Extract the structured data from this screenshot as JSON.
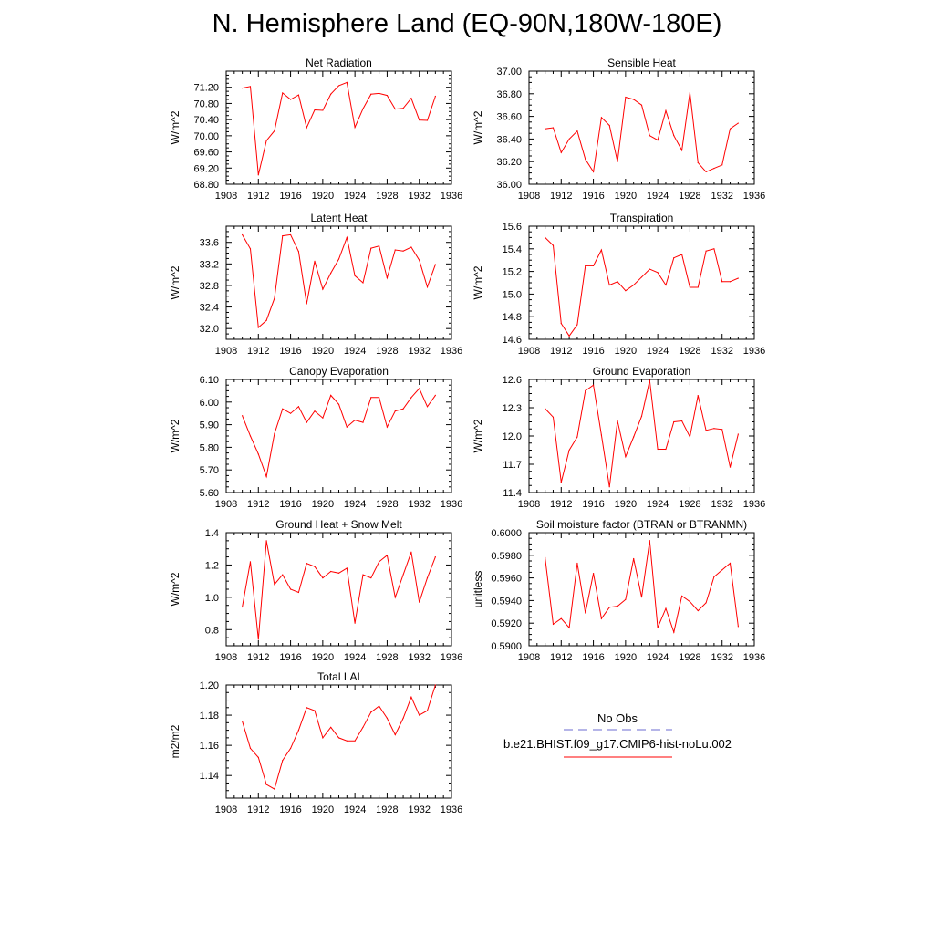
{
  "page": {
    "title": "N. Hemisphere Land (EQ-90N,180W-180E)"
  },
  "legend": {
    "obs_label": "No Obs",
    "model_label": "b.e21.BHIST.f09_g17.CMIP6-hist-noLu.002",
    "obs_color": "#6b6bd0",
    "model_color": "#ff0000"
  },
  "chart_data": [
    {
      "type": "line",
      "title": "Net Radiation",
      "ylabel": "W/m^2",
      "xlim": [
        1908,
        1936
      ],
      "ylim": [
        68.8,
        71.6
      ],
      "xticks": [
        1908,
        1912,
        1916,
        1920,
        1924,
        1928,
        1932,
        1936
      ],
      "yticks": [
        "68.80",
        "69.20",
        "69.60",
        "70.00",
        "70.40",
        "70.80",
        "71.20"
      ],
      "series": [
        {
          "color": "#ff0000",
          "x": [
            1910,
            1911,
            1912,
            1913,
            1914,
            1915,
            1916,
            1917,
            1918,
            1919,
            1920,
            1921,
            1922,
            1923,
            1924,
            1925,
            1926,
            1927,
            1928,
            1929,
            1930,
            1931,
            1932,
            1933,
            1934
          ],
          "values": [
            71.18,
            71.22,
            69.03,
            69.88,
            70.12,
            71.06,
            70.9,
            71.01,
            70.2,
            70.64,
            70.63,
            71.03,
            71.24,
            71.32,
            70.21,
            70.67,
            71.03,
            71.05,
            71.0,
            70.66,
            70.68,
            70.93,
            70.39,
            70.38,
            70.98
          ]
        }
      ]
    },
    {
      "type": "line",
      "title": "Sensible Heat",
      "ylabel": "W/m^2",
      "xlim": [
        1908,
        1936
      ],
      "ylim": [
        36.0,
        37.0
      ],
      "xticks": [
        1908,
        1912,
        1916,
        1920,
        1924,
        1928,
        1932,
        1936
      ],
      "yticks": [
        "36.00",
        "36.20",
        "36.40",
        "36.60",
        "36.80",
        "37.00"
      ],
      "series": [
        {
          "color": "#ff0000",
          "x": [
            1910,
            1911,
            1912,
            1913,
            1914,
            1915,
            1916,
            1917,
            1918,
            1919,
            1920,
            1921,
            1922,
            1923,
            1924,
            1925,
            1926,
            1927,
            1928,
            1929,
            1930,
            1931,
            1932,
            1933,
            1934
          ],
          "values": [
            36.49,
            36.5,
            36.28,
            36.4,
            36.47,
            36.22,
            36.11,
            36.59,
            36.52,
            36.2,
            36.77,
            36.75,
            36.7,
            36.43,
            36.39,
            36.65,
            36.43,
            36.3,
            36.81,
            36.19,
            36.11,
            36.14,
            36.17,
            36.49,
            36.54
          ]
        }
      ]
    },
    {
      "type": "line",
      "title": "Latent Heat",
      "ylabel": "W/m^2",
      "xlim": [
        1908,
        1936
      ],
      "ylim": [
        31.8,
        33.9
      ],
      "xticks": [
        1908,
        1912,
        1916,
        1920,
        1924,
        1928,
        1932,
        1936
      ],
      "yticks": [
        "32.0",
        "32.4",
        "32.8",
        "33.2",
        "33.6"
      ],
      "series": [
        {
          "color": "#ff0000",
          "x": [
            1910,
            1911,
            1912,
            1913,
            1914,
            1915,
            1916,
            1917,
            1918,
            1919,
            1920,
            1921,
            1922,
            1923,
            1924,
            1925,
            1926,
            1927,
            1928,
            1929,
            1930,
            1931,
            1932,
            1933,
            1934
          ],
          "values": [
            33.74,
            33.48,
            32.02,
            32.15,
            32.56,
            33.72,
            33.74,
            33.43,
            32.46,
            33.25,
            32.73,
            33.03,
            33.29,
            33.69,
            32.98,
            32.85,
            33.49,
            33.53,
            32.94,
            33.46,
            33.44,
            33.51,
            33.27,
            32.77,
            33.19
          ]
        }
      ]
    },
    {
      "type": "line",
      "title": "Transpiration",
      "ylabel": "W/m^2",
      "xlim": [
        1908,
        1936
      ],
      "ylim": [
        14.6,
        15.6
      ],
      "xticks": [
        1908,
        1912,
        1916,
        1920,
        1924,
        1928,
        1932,
        1936
      ],
      "yticks": [
        "14.6",
        "14.8",
        "15.0",
        "15.2",
        "15.4",
        "15.6"
      ],
      "series": [
        {
          "color": "#ff0000",
          "x": [
            1910,
            1911,
            1912,
            1913,
            1914,
            1915,
            1916,
            1917,
            1918,
            1919,
            1920,
            1921,
            1922,
            1923,
            1924,
            1925,
            1926,
            1927,
            1928,
            1929,
            1930,
            1931,
            1932,
            1933,
            1934
          ],
          "values": [
            15.5,
            15.43,
            14.74,
            14.63,
            14.73,
            15.25,
            15.25,
            15.39,
            15.08,
            15.11,
            15.03,
            15.08,
            15.15,
            15.22,
            15.19,
            15.08,
            15.32,
            15.35,
            15.06,
            15.06,
            15.38,
            15.4,
            15.11,
            15.11,
            15.14
          ]
        }
      ]
    },
    {
      "type": "line",
      "title": "Canopy Evaporation",
      "ylabel": "W/m^2",
      "xlim": [
        1908,
        1936
      ],
      "ylim": [
        5.6,
        6.1
      ],
      "xticks": [
        1908,
        1912,
        1916,
        1920,
        1924,
        1928,
        1932,
        1936
      ],
      "yticks": [
        "5.60",
        "5.70",
        "5.80",
        "5.90",
        "6.00",
        "6.10"
      ],
      "series": [
        {
          "color": "#ff0000",
          "x": [
            1910,
            1911,
            1912,
            1913,
            1914,
            1915,
            1916,
            1917,
            1918,
            1919,
            1920,
            1921,
            1922,
            1923,
            1924,
            1925,
            1926,
            1927,
            1928,
            1929,
            1930,
            1931,
            1932,
            1933,
            1934
          ],
          "values": [
            5.94,
            5.85,
            5.77,
            5.67,
            5.86,
            5.97,
            5.95,
            5.98,
            5.91,
            5.96,
            5.93,
            6.03,
            5.99,
            5.89,
            5.92,
            5.91,
            6.02,
            6.02,
            5.89,
            5.96,
            5.97,
            6.02,
            6.06,
            5.98,
            6.03
          ]
        }
      ]
    },
    {
      "type": "line",
      "title": "Ground Evaporation",
      "ylabel": "W/m^2",
      "xlim": [
        1908,
        1936
      ],
      "ylim": [
        11.4,
        12.6
      ],
      "xticks": [
        1908,
        1912,
        1916,
        1920,
        1924,
        1928,
        1932,
        1936
      ],
      "yticks": [
        "11.4",
        "11.7",
        "12.0",
        "12.3",
        "12.6"
      ],
      "series": [
        {
          "color": "#ff0000",
          "x": [
            1910,
            1911,
            1912,
            1913,
            1914,
            1915,
            1916,
            1917,
            1918,
            1919,
            1920,
            1921,
            1922,
            1923,
            1924,
            1925,
            1926,
            1927,
            1928,
            1929,
            1930,
            1931,
            1932,
            1933,
            1934
          ],
          "values": [
            12.29,
            12.2,
            11.51,
            11.85,
            11.99,
            12.48,
            12.54,
            12.01,
            11.46,
            12.16,
            11.78,
            11.99,
            12.21,
            12.59,
            11.86,
            11.86,
            12.15,
            12.16,
            11.99,
            12.43,
            12.06,
            12.08,
            12.07,
            11.67,
            12.02
          ]
        }
      ]
    },
    {
      "type": "line",
      "title": "Ground Heat + Snow Melt",
      "ylabel": "W/m^2",
      "xlim": [
        1908,
        1936
      ],
      "ylim": [
        0.7,
        1.4
      ],
      "xticks": [
        1908,
        1912,
        1916,
        1920,
        1924,
        1928,
        1932,
        1936
      ],
      "yticks": [
        "0.8",
        "1.0",
        "1.2",
        "1.4"
      ],
      "series": [
        {
          "color": "#ff0000",
          "x": [
            1910,
            1911,
            1912,
            1913,
            1914,
            1915,
            1916,
            1917,
            1918,
            1919,
            1920,
            1921,
            1922,
            1923,
            1924,
            1925,
            1926,
            1927,
            1928,
            1929,
            1930,
            1931,
            1932,
            1933,
            1934
          ],
          "values": [
            0.94,
            1.22,
            0.74,
            1.35,
            1.08,
            1.14,
            1.05,
            1.03,
            1.21,
            1.19,
            1.12,
            1.16,
            1.15,
            1.18,
            0.84,
            1.14,
            1.12,
            1.22,
            1.26,
            1.0,
            1.14,
            1.28,
            0.97,
            1.12,
            1.25
          ]
        }
      ]
    },
    {
      "type": "line",
      "title": "Soil moisture factor (BTRAN or BTRANMN)",
      "ylabel": "unitless",
      "xlim": [
        1908,
        1936
      ],
      "ylim": [
        0.59,
        0.6
      ],
      "xticks": [
        1908,
        1912,
        1916,
        1920,
        1924,
        1928,
        1932,
        1936
      ],
      "yticks": [
        "0.5900",
        "0.5920",
        "0.5940",
        "0.5960",
        "0.5980",
        "0.6000"
      ],
      "series": [
        {
          "color": "#ff0000",
          "x": [
            1910,
            1911,
            1912,
            1913,
            1914,
            1915,
            1916,
            1917,
            1918,
            1919,
            1920,
            1921,
            1922,
            1923,
            1924,
            1925,
            1926,
            1927,
            1928,
            1929,
            1930,
            1931,
            1932,
            1933,
            1934
          ],
          "values": [
            0.5978,
            0.5919,
            0.5924,
            0.5916,
            0.5973,
            0.5929,
            0.5964,
            0.5924,
            0.5934,
            0.5935,
            0.5941,
            0.5977,
            0.5943,
            0.5993,
            0.5916,
            0.5933,
            0.5912,
            0.5944,
            0.5939,
            0.5931,
            0.5938,
            0.5961,
            0.5967,
            0.5973,
            0.5917
          ]
        }
      ]
    },
    {
      "type": "line",
      "title": "Total LAI",
      "ylabel": "m2/m2",
      "xlim": [
        1908,
        1936
      ],
      "ylim": [
        1.125,
        1.2
      ],
      "xticks": [
        1908,
        1912,
        1916,
        1920,
        1924,
        1928,
        1932,
        1936
      ],
      "yticks": [
        "1.14",
        "1.16",
        "1.18",
        "1.20"
      ],
      "series": [
        {
          "color": "#ff0000",
          "x": [
            1910,
            1911,
            1912,
            1913,
            1914,
            1915,
            1916,
            1917,
            1918,
            1919,
            1920,
            1921,
            1922,
            1923,
            1924,
            1925,
            1926,
            1927,
            1928,
            1929,
            1930,
            1931,
            1932,
            1933,
            1934
          ],
          "values": [
            1.176,
            1.158,
            1.152,
            1.134,
            1.131,
            1.15,
            1.158,
            1.17,
            1.185,
            1.183,
            1.165,
            1.172,
            1.165,
            1.163,
            1.163,
            1.172,
            1.182,
            1.186,
            1.178,
            1.167,
            1.178,
            1.192,
            1.18,
            1.183,
            1.2
          ]
        }
      ]
    }
  ]
}
